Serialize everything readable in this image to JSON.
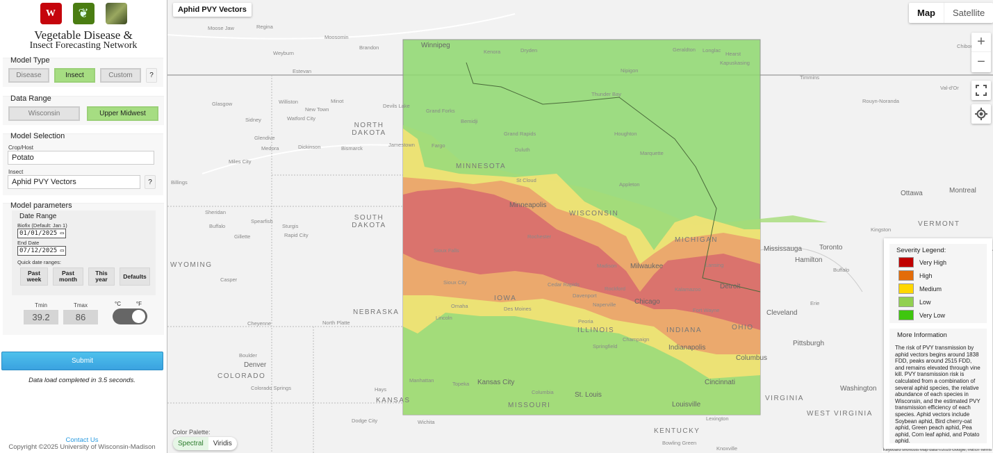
{
  "header": {
    "title_line1": "Vegetable Disease &",
    "title_line2": "Insect Forecasting Network",
    "logo_uw": "W"
  },
  "model_type": {
    "legend": "Model Type",
    "buttons": [
      "Disease",
      "Insect",
      "Custom"
    ],
    "selected": "Insect",
    "help": "?"
  },
  "data_range": {
    "legend": "Data Range",
    "buttons": [
      "Wisconsin",
      "Upper Midwest"
    ],
    "selected": "Upper Midwest"
  },
  "model_selection": {
    "legend": "Model Selection",
    "crop_label": "Crop/Host",
    "crop_value": "Potato",
    "insect_label": "Insect",
    "insect_value": "Aphid PVY Vectors",
    "help": "?"
  },
  "params": {
    "legend": "Model parameters",
    "date_legend": "Date Range",
    "biofix_label": "Biofix (Default: Jan 1)",
    "biofix_value": "01/01/2025",
    "end_label": "End Date",
    "end_value": "07/12/2025",
    "quick_label": "Quick date ranges:",
    "quick": [
      "Past week",
      "Past month",
      "This year",
      "Defaults"
    ],
    "tmin_label": "Tmin",
    "tmin_value": "39.2",
    "tmax_label": "Tmax",
    "tmax_value": "86",
    "unit_c": "°C",
    "unit_f": "°F",
    "unit_selected": "°F"
  },
  "submit_label": "Submit",
  "status": "Data load completed in 3.5 seconds.",
  "footer": {
    "contact": "Contact Us",
    "copyright": "Copyright ©2025 University of Wisconsin-Madison"
  },
  "map": {
    "layer_title": "Aphid PVY Vectors",
    "type_buttons": [
      "Map",
      "Satellite"
    ],
    "type_selected": "Map",
    "zoom_in": "+",
    "zoom_out": "−",
    "palette_label": "Color Palette:",
    "palettes": [
      "Spectral",
      "Viridis"
    ],
    "palette_selected": "Spectral",
    "attribution": "Keyboard shortcuts   Map data ©2025 Google, INEGI   Terms",
    "labels": [
      "Winnipeg",
      "Regina",
      "Brandon",
      "Estevan",
      "Moose Jaw",
      "Weyburn",
      "Moosomin",
      "Glasgow",
      "Williston",
      "Minot",
      "New Town",
      "Watford City",
      "Devils Lake",
      "Sidney",
      "Glendive",
      "Medora",
      "Dickinson",
      "Bismarck",
      "Jamestown",
      "Miles City",
      "Billings",
      "Sheridan",
      "Buffalo",
      "Gillette",
      "Spearfish",
      "Sturgis",
      "Rapid City",
      "Casper",
      "Cheyenne",
      "Boulder",
      "Denver",
      "Colorado Springs",
      "North Platte",
      "Hays",
      "Dodge City",
      "Wichita",
      "Thunder Bay",
      "Duluth",
      "Fargo",
      "Grand Forks",
      "Bemidji",
      "Grand Rapids",
      "St Cloud",
      "Minneapolis",
      "Rochester",
      "Sioux Falls",
      "Sioux City",
      "Omaha",
      "Lincoln",
      "Des Moines",
      "Cedar Rapids",
      "Davenport",
      "Madison",
      "Milwaukee",
      "Appleton",
      "Rockford",
      "Chicago",
      "Naperville",
      "Peoria",
      "Springfield",
      "Champaign",
      "Indianapolis",
      "Fort Wayne",
      "Kalamazoo",
      "Lansing",
      "Detroit",
      "Columbus",
      "Cincinnati",
      "Louisville",
      "St. Louis",
      "Kansas City",
      "Topeka",
      "Manhattan",
      "Columbia",
      "Marquette",
      "Houghton",
      "Nipigon",
      "Geraldton",
      "Longlac",
      "Hearst",
      "Kapuskasing",
      "Kenora",
      "Dryden",
      "Toronto",
      "Hamilton",
      "Mississauga",
      "Ottawa",
      "Montreal",
      "Cleveland",
      "Erie",
      "Pittsburgh",
      "Buffalo",
      "Washington",
      "Timmins",
      "Chibougamau",
      "Rouyn-Noranda",
      "Val-d'Or",
      "Kingston",
      "Lexington",
      "Bowling Green",
      "Knoxville"
    ],
    "states": [
      "NORTH DAKOTA",
      "SOUTH DAKOTA",
      "MINNESOTA",
      "WISCONSIN",
      "MICHIGAN",
      "IOWA",
      "NEBRASKA",
      "ILLINOIS",
      "INDIANA",
      "OHIO",
      "MISSOURI",
      "KANSAS",
      "COLORADO",
      "WYOMING",
      "KENTUCKY",
      "VIRGINIA",
      "WEST VIRGINIA",
      "VERMONT"
    ]
  },
  "legend": {
    "title": "Severity Legend:",
    "items": [
      {
        "label": "Very High",
        "color": "#c00000"
      },
      {
        "label": "High",
        "color": "#e36c09"
      },
      {
        "label": "Medium",
        "color": "#ffd700"
      },
      {
        "label": "Low",
        "color": "#92d050"
      },
      {
        "label": "Very Low",
        "color": "#3fc60f"
      }
    ],
    "info_title": "More Information",
    "info_text": "The risk of PVY transmission by aphid vectors begins around 1838 FDD, peaks around 2515 FDD, and remains elevated through vine kill. PVY transmission risk is calculated from a combination of several aphid species, the relative abundance of each species in Wisconsin, and the estimated PVY transmission efficiency of each species. Aphid vectors include Soybean aphid, Bird cherry-oat aphid, Green peach aphid, Pea aphid, Corn leaf aphid, and Potato aphid."
  },
  "colors": {
    "accent_green": "#a6dd82",
    "submit_blue": "#3aa2e0",
    "link": "#2b9be0"
  }
}
